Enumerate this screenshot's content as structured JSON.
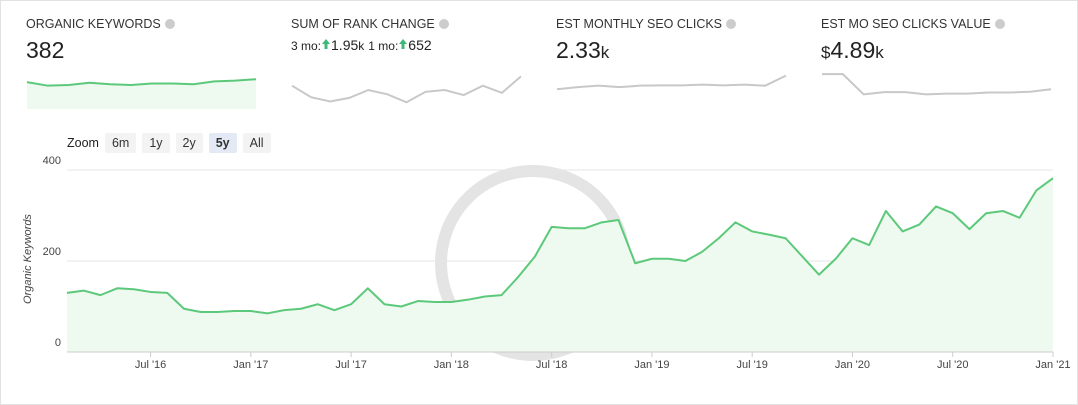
{
  "cards": [
    {
      "title": "ORGANIC KEYWORDS",
      "value": "382",
      "sparkline": [
        72,
        62,
        64,
        70,
        66,
        64,
        68,
        68,
        66,
        74,
        76,
        80
      ],
      "color": "#5cc97a",
      "fill": "#eef9f0"
    },
    {
      "title": "SUM OF RANK CHANGE",
      "label_3mo": "3 mo:",
      "value_3mo": "1.95",
      "unit_3mo": "k",
      "label_1mo": "1 mo:",
      "value_1mo": "652",
      "sparkline": [
        62,
        30,
        18,
        28,
        50,
        38,
        16,
        45,
        50,
        36,
        62,
        42,
        88
      ],
      "color": "#c8c8c8"
    },
    {
      "title": "EST MONTHLY SEO CLICKS",
      "value": "2.33",
      "unit": "k",
      "sparkline": [
        52,
        58,
        62,
        58,
        62,
        63,
        63,
        65,
        63,
        65,
        62,
        90
      ],
      "color": "#c8c8c8"
    },
    {
      "title": "EST MO SEO CLICKS VALUE",
      "prefix": "$",
      "value": "4.89",
      "unit": "k",
      "sparkline": [
        94,
        94,
        38,
        44,
        44,
        38,
        40,
        40,
        43,
        43,
        45,
        52
      ],
      "color": "#c8c8c8"
    }
  ],
  "zoom": {
    "label": "Zoom",
    "buttons": [
      "6m",
      "1y",
      "2y",
      "5y",
      "All"
    ],
    "active": 3
  },
  "chart_data": {
    "type": "line",
    "y_label": "Organic Keywords",
    "color": "#5cc97a",
    "fill": "#eef9f0",
    "grid": true,
    "x": [
      "2016-02",
      "2016-03",
      "2016-04",
      "2016-05",
      "2016-06",
      "2016-07",
      "2016-08",
      "2016-09",
      "2016-10",
      "2016-11",
      "2016-12",
      "2017-01",
      "2017-02",
      "2017-03",
      "2017-04",
      "2017-05",
      "2017-06",
      "2017-07",
      "2017-08",
      "2017-09",
      "2017-10",
      "2017-11",
      "2017-12",
      "2018-01",
      "2018-02",
      "2018-03",
      "2018-04",
      "2018-05",
      "2018-06",
      "2018-07",
      "2018-08",
      "2018-09",
      "2018-10",
      "2018-11",
      "2018-12",
      "2019-01",
      "2019-02",
      "2019-03",
      "2019-04",
      "2019-05",
      "2019-06",
      "2019-07",
      "2019-08",
      "2019-09",
      "2019-10",
      "2019-11",
      "2019-12",
      "2020-01",
      "2020-02",
      "2020-03",
      "2020-04",
      "2020-05",
      "2020-06",
      "2020-07",
      "2020-08",
      "2020-09",
      "2020-10",
      "2020-11",
      "2020-12",
      "2021-01"
    ],
    "values": [
      130,
      135,
      125,
      140,
      138,
      132,
      130,
      95,
      88,
      88,
      90,
      90,
      85,
      92,
      95,
      105,
      92,
      105,
      140,
      105,
      100,
      112,
      110,
      110,
      115,
      122,
      125,
      165,
      210,
      275,
      272,
      272,
      285,
      290,
      195,
      205,
      205,
      200,
      220,
      250,
      285,
      265,
      258,
      250,
      210,
      170,
      205,
      250,
      235,
      310,
      265,
      280,
      320,
      305,
      270,
      305,
      310,
      295,
      355,
      382
    ],
    "xlim": [
      "2016-02",
      "2021-01"
    ],
    "xticks": [
      {
        "value": "2016-07",
        "label": "Jul '16"
      },
      {
        "value": "2017-01",
        "label": "Jan '17"
      },
      {
        "value": "2017-07",
        "label": "Jul '17"
      },
      {
        "value": "2018-01",
        "label": "Jan '18"
      },
      {
        "value": "2018-07",
        "label": "Jul '18"
      },
      {
        "value": "2019-01",
        "label": "Jan '19"
      },
      {
        "value": "2019-07",
        "label": "Jul '19"
      },
      {
        "value": "2020-01",
        "label": "Jan '20"
      },
      {
        "value": "2020-07",
        "label": "Jul '20"
      },
      {
        "value": "2021-01",
        "label": "Jan '21"
      }
    ],
    "ylim": [
      0,
      400
    ],
    "yticks": [
      0,
      200,
      400
    ]
  }
}
